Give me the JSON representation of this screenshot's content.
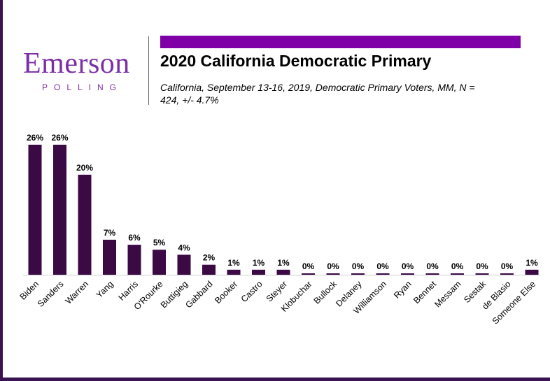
{
  "logo": {
    "name": "Emerson",
    "sub": "POLLING"
  },
  "header": {
    "title": "2020 California Democratic Primary",
    "subtitle": "California, September 13-16, 2019, Democratic Primary Voters, MM, N = 424, +/- 4.7%"
  },
  "colors": {
    "bar": "#3b0a45",
    "accent": "#8000a8",
    "logo": "#7b2fa6"
  },
  "chart_data": {
    "type": "bar",
    "categories": [
      "Biden",
      "Sanders",
      "Warren",
      "Yang",
      "Harris",
      "O'Rourke",
      "Buttigieg",
      "Gabbard",
      "Booker",
      "Castro",
      "Steyer",
      "Klobuchar",
      "Bullock",
      "Delaney",
      "Williamson",
      "Ryan",
      "Bennet",
      "Messam",
      "Sestak",
      "de Blasio",
      "Someone Else"
    ],
    "values": [
      26,
      26,
      20,
      7,
      6,
      5,
      4,
      2,
      1,
      1,
      1,
      0,
      0,
      0,
      0,
      0,
      0,
      0,
      0,
      0,
      1
    ],
    "data_labels": [
      "26%",
      "26%",
      "20%",
      "7%",
      "6%",
      "5%",
      "4%",
      "2%",
      "1%",
      "1%",
      "1%",
      "0%",
      "0%",
      "0%",
      "0%",
      "0%",
      "0%",
      "0%",
      "0%",
      "0%",
      "1%"
    ],
    "ylim": [
      0,
      26
    ],
    "grid": false
  }
}
